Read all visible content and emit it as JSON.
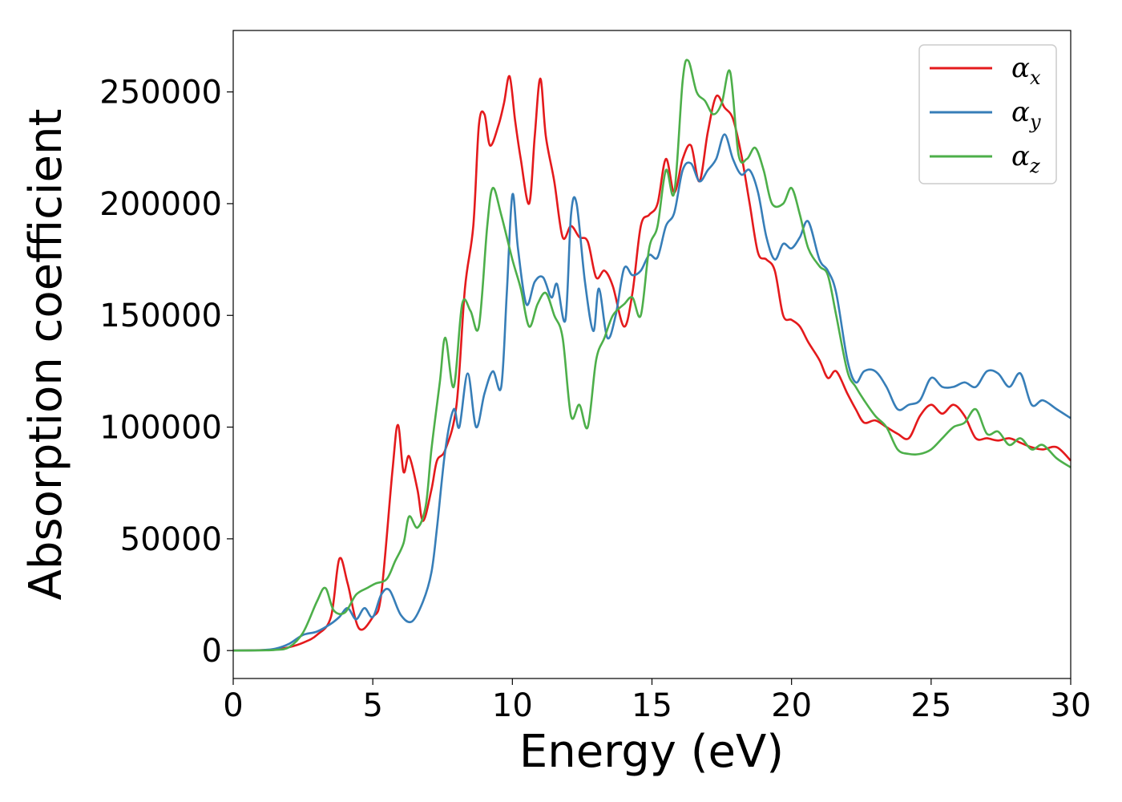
{
  "chart_data": {
    "type": "line",
    "xlabel": "Energy (eV)",
    "ylabel": "Absorption coefficient",
    "xlim": [
      0,
      30
    ],
    "ylim": [
      -12500,
      277500
    ],
    "xticks": [
      "0",
      "5",
      "10",
      "15",
      "20",
      "25",
      "30"
    ],
    "yticks": [
      "0",
      "50000",
      "100000",
      "150000",
      "200000",
      "250000"
    ],
    "grid": false,
    "legend_position": "top-right",
    "series": [
      {
        "name": "αx",
        "legend_base": "α",
        "legend_sub": "x",
        "color": "#e41a1c",
        "points": [
          [
            0,
            0
          ],
          [
            1,
            200
          ],
          [
            1.5,
            500
          ],
          [
            2,
            1500
          ],
          [
            2.5,
            3500
          ],
          [
            3,
            7000
          ],
          [
            3.5,
            15000
          ],
          [
            3.8,
            41000
          ],
          [
            4.1,
            30000
          ],
          [
            4.5,
            10000
          ],
          [
            5,
            15000
          ],
          [
            5.3,
            25000
          ],
          [
            5.7,
            80000
          ],
          [
            5.9,
            101000
          ],
          [
            6.1,
            80000
          ],
          [
            6.3,
            87000
          ],
          [
            6.6,
            72000
          ],
          [
            6.8,
            58000
          ],
          [
            7.1,
            72000
          ],
          [
            7.3,
            85000
          ],
          [
            7.6,
            90000
          ],
          [
            8,
            110000
          ],
          [
            8.3,
            162000
          ],
          [
            8.6,
            190000
          ],
          [
            8.8,
            235000
          ],
          [
            9.0,
            240000
          ],
          [
            9.2,
            226000
          ],
          [
            9.5,
            235000
          ],
          [
            9.7,
            245000
          ],
          [
            9.9,
            257000
          ],
          [
            10.1,
            237000
          ],
          [
            10.3,
            220000
          ],
          [
            10.6,
            200000
          ],
          [
            10.8,
            230000
          ],
          [
            11.0,
            256000
          ],
          [
            11.2,
            230000
          ],
          [
            11.5,
            210000
          ],
          [
            11.8,
            185000
          ],
          [
            12.1,
            190000
          ],
          [
            12.4,
            185000
          ],
          [
            12.7,
            183000
          ],
          [
            13.0,
            167000
          ],
          [
            13.3,
            170000
          ],
          [
            13.6,
            163000
          ],
          [
            14.0,
            145000
          ],
          [
            14.3,
            160000
          ],
          [
            14.6,
            190000
          ],
          [
            14.9,
            195000
          ],
          [
            15.2,
            200000
          ],
          [
            15.5,
            220000
          ],
          [
            15.8,
            205000
          ],
          [
            16.1,
            220000
          ],
          [
            16.4,
            226000
          ],
          [
            16.7,
            210000
          ],
          [
            17.0,
            232000
          ],
          [
            17.3,
            248000
          ],
          [
            17.6,
            243000
          ],
          [
            17.9,
            238000
          ],
          [
            18.2,
            222000
          ],
          [
            18.5,
            200000
          ],
          [
            18.8,
            178000
          ],
          [
            19.1,
            175000
          ],
          [
            19.4,
            170000
          ],
          [
            19.7,
            150000
          ],
          [
            20.0,
            148000
          ],
          [
            20.3,
            145000
          ],
          [
            20.6,
            138000
          ],
          [
            21.0,
            130000
          ],
          [
            21.3,
            122000
          ],
          [
            21.6,
            125000
          ],
          [
            22.0,
            115000
          ],
          [
            22.3,
            108000
          ],
          [
            22.6,
            102000
          ],
          [
            23.0,
            103000
          ],
          [
            23.4,
            100000
          ],
          [
            23.8,
            97000
          ],
          [
            24.2,
            95000
          ],
          [
            24.6,
            105000
          ],
          [
            25.0,
            110000
          ],
          [
            25.4,
            106000
          ],
          [
            25.8,
            110000
          ],
          [
            26.2,
            105000
          ],
          [
            26.6,
            95000
          ],
          [
            27.0,
            95000
          ],
          [
            27.4,
            94000
          ],
          [
            27.8,
            95000
          ],
          [
            28.2,
            93000
          ],
          [
            28.6,
            91000
          ],
          [
            29.0,
            90000
          ],
          [
            29.5,
            91000
          ],
          [
            30,
            85000
          ]
        ]
      },
      {
        "name": "αy",
        "legend_base": "α",
        "legend_sub": "y",
        "color": "#377eb8",
        "points": [
          [
            0,
            0
          ],
          [
            1,
            200
          ],
          [
            1.5,
            800
          ],
          [
            2,
            3000
          ],
          [
            2.5,
            7000
          ],
          [
            3,
            8500
          ],
          [
            3.5,
            12000
          ],
          [
            3.8,
            15000
          ],
          [
            4.1,
            19000
          ],
          [
            4.4,
            14000
          ],
          [
            4.7,
            19000
          ],
          [
            5,
            15000
          ],
          [
            5.3,
            25000
          ],
          [
            5.6,
            27000
          ],
          [
            6,
            16000
          ],
          [
            6.4,
            13000
          ],
          [
            6.8,
            22000
          ],
          [
            7.1,
            35000
          ],
          [
            7.3,
            55000
          ],
          [
            7.6,
            90000
          ],
          [
            7.9,
            108000
          ],
          [
            8.1,
            100000
          ],
          [
            8.4,
            124000
          ],
          [
            8.7,
            100000
          ],
          [
            9.0,
            115000
          ],
          [
            9.3,
            125000
          ],
          [
            9.6,
            118000
          ],
          [
            9.8,
            160000
          ],
          [
            10.0,
            204000
          ],
          [
            10.2,
            180000
          ],
          [
            10.5,
            155000
          ],
          [
            10.8,
            165000
          ],
          [
            11.1,
            167000
          ],
          [
            11.4,
            158000
          ],
          [
            11.6,
            164000
          ],
          [
            11.9,
            148000
          ],
          [
            12.1,
            195000
          ],
          [
            12.3,
            200000
          ],
          [
            12.6,
            165000
          ],
          [
            12.9,
            143000
          ],
          [
            13.1,
            162000
          ],
          [
            13.4,
            140000
          ],
          [
            13.7,
            150000
          ],
          [
            14.0,
            171000
          ],
          [
            14.3,
            168000
          ],
          [
            14.6,
            170000
          ],
          [
            14.9,
            177000
          ],
          [
            15.2,
            176000
          ],
          [
            15.5,
            190000
          ],
          [
            15.8,
            196000
          ],
          [
            16.1,
            215000
          ],
          [
            16.4,
            218000
          ],
          [
            16.7,
            210000
          ],
          [
            17.0,
            215000
          ],
          [
            17.3,
            220000
          ],
          [
            17.6,
            231000
          ],
          [
            17.9,
            220000
          ],
          [
            18.2,
            213000
          ],
          [
            18.5,
            215000
          ],
          [
            18.8,
            205000
          ],
          [
            19.1,
            185000
          ],
          [
            19.4,
            175000
          ],
          [
            19.7,
            182000
          ],
          [
            20.0,
            180000
          ],
          [
            20.3,
            185000
          ],
          [
            20.6,
            192000
          ],
          [
            21.0,
            175000
          ],
          [
            21.3,
            170000
          ],
          [
            21.6,
            160000
          ],
          [
            22.0,
            130000
          ],
          [
            22.3,
            120000
          ],
          [
            22.6,
            125000
          ],
          [
            23.0,
            125000
          ],
          [
            23.4,
            118000
          ],
          [
            23.8,
            108000
          ],
          [
            24.2,
            110000
          ],
          [
            24.6,
            112000
          ],
          [
            25.0,
            122000
          ],
          [
            25.4,
            118000
          ],
          [
            25.8,
            118000
          ],
          [
            26.2,
            120000
          ],
          [
            26.6,
            118000
          ],
          [
            27.0,
            125000
          ],
          [
            27.4,
            124000
          ],
          [
            27.8,
            118000
          ],
          [
            28.2,
            124000
          ],
          [
            28.6,
            110000
          ],
          [
            29.0,
            112000
          ],
          [
            29.5,
            108000
          ],
          [
            30,
            104000
          ]
        ]
      },
      {
        "name": "αz",
        "legend_base": "α",
        "legend_sub": "z",
        "color": "#4daf4a",
        "points": [
          [
            0,
            0
          ],
          [
            1,
            100
          ],
          [
            1.5,
            300
          ],
          [
            2,
            1500
          ],
          [
            2.5,
            8000
          ],
          [
            3,
            22000
          ],
          [
            3.3,
            28000
          ],
          [
            3.6,
            18000
          ],
          [
            4,
            17000
          ],
          [
            4.4,
            25000
          ],
          [
            4.8,
            28000
          ],
          [
            5.1,
            30000
          ],
          [
            5.5,
            32000
          ],
          [
            5.8,
            40000
          ],
          [
            6.1,
            48000
          ],
          [
            6.3,
            60000
          ],
          [
            6.6,
            55000
          ],
          [
            6.9,
            65000
          ],
          [
            7.1,
            90000
          ],
          [
            7.4,
            120000
          ],
          [
            7.6,
            140000
          ],
          [
            7.9,
            118000
          ],
          [
            8.2,
            155000
          ],
          [
            8.5,
            152000
          ],
          [
            8.8,
            145000
          ],
          [
            9.1,
            190000
          ],
          [
            9.3,
            207000
          ],
          [
            9.6,
            195000
          ],
          [
            10.0,
            175000
          ],
          [
            10.3,
            162000
          ],
          [
            10.6,
            145000
          ],
          [
            10.9,
            155000
          ],
          [
            11.2,
            160000
          ],
          [
            11.5,
            150000
          ],
          [
            11.8,
            140000
          ],
          [
            12.1,
            105000
          ],
          [
            12.4,
            110000
          ],
          [
            12.7,
            100000
          ],
          [
            13.0,
            130000
          ],
          [
            13.3,
            140000
          ],
          [
            13.6,
            150000
          ],
          [
            14.0,
            155000
          ],
          [
            14.3,
            158000
          ],
          [
            14.6,
            150000
          ],
          [
            14.9,
            180000
          ],
          [
            15.2,
            190000
          ],
          [
            15.5,
            215000
          ],
          [
            15.8,
            205000
          ],
          [
            16.1,
            255000
          ],
          [
            16.3,
            264000
          ],
          [
            16.6,
            250000
          ],
          [
            16.9,
            246000
          ],
          [
            17.2,
            240000
          ],
          [
            17.5,
            245000
          ],
          [
            17.8,
            259000
          ],
          [
            18.1,
            222000
          ],
          [
            18.4,
            220000
          ],
          [
            18.7,
            225000
          ],
          [
            19.0,
            215000
          ],
          [
            19.3,
            200000
          ],
          [
            19.7,
            200000
          ],
          [
            20.0,
            207000
          ],
          [
            20.3,
            195000
          ],
          [
            20.6,
            180000
          ],
          [
            21.0,
            172000
          ],
          [
            21.3,
            168000
          ],
          [
            21.6,
            150000
          ],
          [
            22.0,
            125000
          ],
          [
            22.3,
            118000
          ],
          [
            22.6,
            112000
          ],
          [
            23.0,
            105000
          ],
          [
            23.4,
            100000
          ],
          [
            23.8,
            90000
          ],
          [
            24.2,
            88000
          ],
          [
            24.6,
            88000
          ],
          [
            25.0,
            90000
          ],
          [
            25.4,
            95000
          ],
          [
            25.8,
            100000
          ],
          [
            26.2,
            102000
          ],
          [
            26.6,
            108000
          ],
          [
            27.0,
            97000
          ],
          [
            27.4,
            98000
          ],
          [
            27.8,
            92000
          ],
          [
            28.2,
            95000
          ],
          [
            28.6,
            90000
          ],
          [
            29.0,
            92000
          ],
          [
            29.5,
            86000
          ],
          [
            30,
            82000
          ]
        ]
      }
    ]
  }
}
